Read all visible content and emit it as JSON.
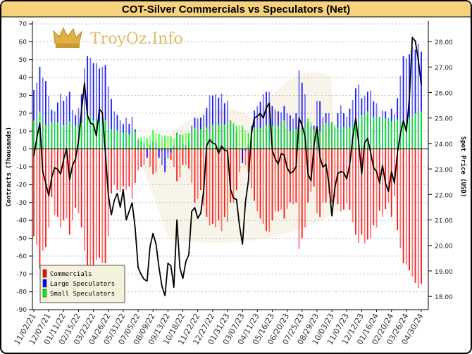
{
  "chart_data": {
    "type": "bar",
    "title": "COT-Silver Commercials vs Speculators (Net)",
    "ylabel": "Contracts (Thousands)",
    "ylabel_right": "Spot Price (USD)",
    "ylim": [
      -90,
      70
    ],
    "yticks": [
      70,
      60,
      50,
      40,
      30,
      20,
      10,
      0,
      -10,
      -20,
      -30,
      -40,
      -50,
      -60,
      -70,
      -80,
      -90
    ],
    "ylim_right": [
      17.48,
      28.69
    ],
    "yticks_right": [
      "28.00",
      "27.00",
      "26.00",
      "25.00",
      "24.00",
      "23.00",
      "22.00",
      "21.00",
      "20.00",
      "19.00",
      "18.00"
    ],
    "grid": true,
    "legend_position": "bottom-left",
    "xtick_every": 5,
    "xticks": [
      "11/02/21",
      "12/07/21",
      "01/11/22",
      "02/15/22",
      "03/22/22",
      "04/26/22",
      "05/31/22",
      "07/05/22",
      "08/09/22",
      "09/13/22",
      "10/18/22",
      "11/22/22",
      "12/27/22",
      "01/31/23",
      "03/07/23",
      "04/11/23",
      "05/16/23",
      "06/20/23",
      "07/25/23",
      "08/29/23",
      "10/03/23",
      "11/07/23",
      "12/12/23",
      "01/16/24",
      "02/20/24",
      "03/26/24",
      "04/30/24"
    ],
    "series": [
      {
        "name": "Commercials",
        "type": "bar",
        "color": "#ff0000",
        "values": [
          -49,
          -54,
          -67,
          -57,
          -55,
          -44,
          -27,
          -37,
          -38,
          -44,
          -40,
          -39,
          -48,
          -40,
          -33,
          -36,
          -44,
          -57,
          -66,
          -65,
          -65,
          -62,
          -61,
          -64,
          -64,
          -49,
          -25,
          -20,
          -23,
          -24,
          -21,
          -23,
          -21,
          -28,
          -19,
          -12,
          -10,
          -9,
          -4,
          -10,
          -14,
          -13,
          -4,
          -1,
          0,
          -2,
          -6,
          -10,
          -18,
          -16,
          -9,
          -9,
          -11,
          -19,
          -30,
          -28,
          -23,
          -32,
          -38,
          -43,
          -42,
          -44,
          -40,
          -46,
          -38,
          -41,
          -30,
          -30,
          -23,
          -13,
          -6,
          -9,
          -13,
          -22,
          -29,
          -35,
          -39,
          -42,
          -46,
          -46.5,
          -40,
          -35,
          -35,
          -34,
          -39,
          -33.5,
          -30,
          -31,
          -30,
          -56,
          -50,
          -44,
          -30,
          -24,
          -21,
          -36,
          -38,
          -30,
          -30,
          -25,
          -30,
          -27,
          -31,
          -35,
          -34,
          -30.5,
          -34,
          -41,
          -48,
          -52.6,
          -48,
          -53,
          -50.7,
          -50,
          -42.8,
          -44,
          -34.6,
          -38,
          -33.7,
          -30,
          -38,
          -26.5,
          -45.5,
          -55.5,
          -64,
          -65,
          -68,
          -71.6,
          -75,
          -78,
          -75.6
        ]
      },
      {
        "name": "Large Speculators",
        "type": "bar",
        "color": "#0000ff",
        "values": [
          33,
          37,
          46,
          40,
          38,
          29.6,
          22,
          21,
          26,
          31,
          27,
          29.6,
          32,
          22,
          19,
          23,
          30.6,
          45,
          52,
          51,
          48,
          48,
          45,
          46,
          47,
          35,
          28,
          21,
          19,
          16,
          14,
          17.5,
          14,
          18,
          11,
          5,
          4,
          3,
          -5,
          2,
          4,
          4,
          -5,
          -9,
          -13,
          -5,
          -2,
          2,
          9,
          8,
          3,
          2,
          4,
          13,
          17.5,
          17,
          17.5,
          19,
          23,
          30,
          30,
          30.6,
          28.7,
          31,
          25.6,
          27,
          16,
          14,
          9,
          0,
          -8,
          -1,
          3,
          13,
          21.5,
          24,
          26.4,
          30.6,
          32,
          32,
          24,
          22,
          21,
          20.5,
          24,
          20,
          19,
          17,
          20,
          44,
          37,
          30.6,
          15,
          13,
          13,
          27,
          26.7,
          17.8,
          20,
          20,
          15,
          12,
          20,
          24.5,
          20,
          18,
          22.5,
          27.5,
          34,
          36,
          28.4,
          29.7,
          32,
          32.7,
          26.7,
          25.6,
          18,
          21.6,
          21,
          17.5,
          22.5,
          19.5,
          28.4,
          41,
          52,
          50.7,
          53,
          57,
          55.6,
          59,
          54.4
        ]
      },
      {
        "name": "Small Speculators",
        "type": "bar",
        "color": "#00ff00",
        "values": [
          16,
          17,
          21,
          17.5,
          13.5,
          13.5,
          15,
          15.5,
          15,
          12.6,
          13.5,
          13.5,
          15.5,
          13,
          13,
          13,
          14.6,
          17.5,
          21,
          19,
          16,
          17,
          15,
          21,
          16,
          11.6,
          11,
          11,
          10.6,
          9.6,
          9,
          10,
          8,
          11,
          9.6,
          6.3,
          6.3,
          7,
          6,
          7.6,
          10.5,
          9,
          8.5,
          7.6,
          7.6,
          7.4,
          7,
          6,
          8.7,
          8.3,
          8,
          9,
          9,
          10,
          12,
          11,
          11,
          12.5,
          12,
          10,
          13.5,
          13,
          13.5,
          14,
          13.8,
          13,
          16,
          14.6,
          13,
          13,
          13,
          10.5,
          9,
          8.5,
          12,
          12.6,
          11.6,
          11,
          13.5,
          13.5,
          12.8,
          13,
          13,
          13.5,
          16,
          12,
          10,
          11,
          11,
          12,
          11,
          13.5,
          17,
          15,
          11,
          11,
          10,
          14,
          14.6,
          13,
          15,
          13.6,
          12,
          10,
          12.5,
          13,
          12,
          13.5,
          17,
          15.5,
          19,
          19.5,
          21,
          17.5,
          18,
          18,
          18,
          16.5,
          17,
          17.5,
          15.5,
          17.5,
          16.5,
          16,
          16,
          15,
          18,
          18,
          20,
          21,
          21
        ]
      },
      {
        "type": "line",
        "axis": "right",
        "color": "#000000",
        "values": [
          23.5,
          24.2,
          24.8,
          22.9,
          22.45,
          21.95,
          22.67,
          23.05,
          22.99,
          22.8,
          23.37,
          23.8,
          22.58,
          23.14,
          23.4,
          24.1,
          25.3,
          26.37,
          25.1,
          24.8,
          24.75,
          24.3,
          25.35,
          25.2,
          23.65,
          21.99,
          21.2,
          21.76,
          22.04,
          21.5,
          22.2,
          21.0,
          21.34,
          21.67,
          20.7,
          19.13,
          18.86,
          18.67,
          18.6,
          19.96,
          20.47,
          20.05,
          19.13,
          18.4,
          18.03,
          19.3,
          19.2,
          18.36,
          21.0,
          19.13,
          18.7,
          19.36,
          19.64,
          21.34,
          21.48,
          21.07,
          21.26,
          22.17,
          23.92,
          24.15,
          24.02,
          23.97,
          23.6,
          23.9,
          23.74,
          23.7,
          22.2,
          21.85,
          21.8,
          20.79,
          20.05,
          21.7,
          22.54,
          24.36,
          25.0,
          25.07,
          25.18,
          25.0,
          25.4,
          25.58,
          23.74,
          23.4,
          23.19,
          23.6,
          23.55,
          23.05,
          22.83,
          22.9,
          23.09,
          25.0,
          24.7,
          24.28,
          22.8,
          22.54,
          23.92,
          24.66,
          23.47,
          23.07,
          23.19,
          22.45,
          21.16,
          22.26,
          22.82,
          22.9,
          22.86,
          22.61,
          23.19,
          24.2,
          24.99,
          24.02,
          22.8,
          24.02,
          24.2,
          23.65,
          23.05,
          22.9,
          22.45,
          23.14,
          22.45,
          22.12,
          22.9,
          22.45,
          23.65,
          24.38,
          24.9,
          24.47,
          25.76,
          28.16,
          28.02,
          27.28,
          26.3
        ]
      }
    ]
  },
  "watermark": {
    "logo_text": "TroyOz.Info"
  },
  "colors": {
    "title_bar": "#f7d27c",
    "legend_bg": "#f4f2dc"
  }
}
